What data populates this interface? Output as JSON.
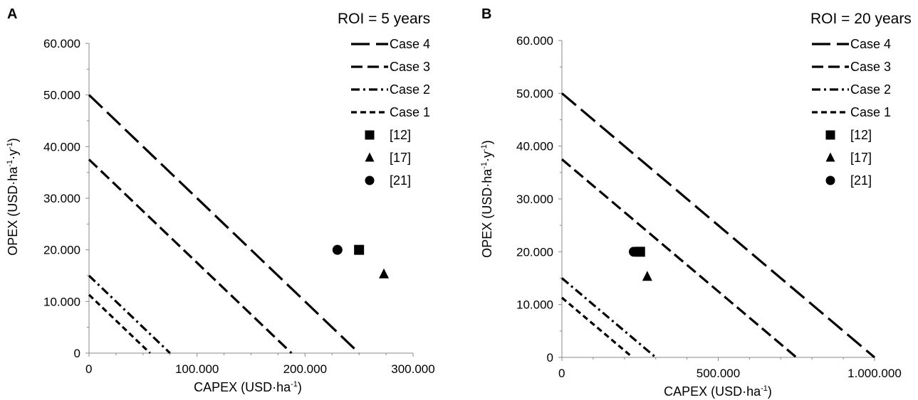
{
  "chart_data": [
    {
      "type": "line",
      "panel_label": "A",
      "title": "ROI = 5 years",
      "xlabel": "CAPEX (USD·ha",
      "xlabel_sup": "-1",
      "xlabel_end": ")",
      "ylabel": "OPEX (USD·ha",
      "ylabel_sup1": "-1",
      "ylabel_mid": "·y",
      "ylabel_sup2": "-1",
      "ylabel_end": ")",
      "xlim": [
        0,
        300000
      ],
      "ylim": [
        0,
        60000
      ],
      "x_tick_labels": [
        "0",
        "100.000",
        "200.000",
        "300.000"
      ],
      "y_tick_labels": [
        "0",
        "10.000",
        "20.000",
        "30.000",
        "40.000",
        "50.000",
        "60.000"
      ],
      "series": [
        {
          "name": "Case 4",
          "style": "long-dash",
          "x": [
            0,
            250000
          ],
          "y": [
            50000,
            0
          ]
        },
        {
          "name": "Case 3",
          "style": "dash",
          "x": [
            0,
            187500
          ],
          "y": [
            37500,
            0
          ]
        },
        {
          "name": "Case 2",
          "style": "dash-dot",
          "x": [
            0,
            75000
          ],
          "y": [
            15000,
            0
          ]
        },
        {
          "name": "Case 1",
          "style": "short-dash",
          "x": [
            0,
            56500
          ],
          "y": [
            11300,
            0
          ]
        }
      ],
      "points": [
        {
          "name": "[12]",
          "marker": "square",
          "x": 250000,
          "y": 20000
        },
        {
          "name": "[17]",
          "marker": "triangle",
          "x": 273000,
          "y": 15300
        },
        {
          "name": "[21]",
          "marker": "circle",
          "x": 230000,
          "y": 20000
        }
      ],
      "legend_position": "top-right"
    },
    {
      "type": "line",
      "panel_label": "B",
      "title": "ROI = 20 years",
      "xlabel": "CAPEX (USD·ha",
      "xlabel_sup": "-1",
      "xlabel_end": ")",
      "ylabel": "OPEX (USD·ha",
      "ylabel_sup1": "-1",
      "ylabel_mid": "·y",
      "ylabel_sup2": "-1",
      "ylabel_end": ")",
      "xlim": [
        0,
        1000000
      ],
      "ylim": [
        0,
        60000
      ],
      "x_tick_labels": [
        "0",
        "500.000",
        "1.000.000"
      ],
      "y_tick_labels": [
        "0",
        "10.000",
        "20.000",
        "30.000",
        "40.000",
        "50.000",
        "60.000"
      ],
      "series": [
        {
          "name": "Case 4",
          "style": "long-dash",
          "x": [
            0,
            1000000
          ],
          "y": [
            50000,
            0
          ]
        },
        {
          "name": "Case 3",
          "style": "dash",
          "x": [
            0,
            750000
          ],
          "y": [
            37500,
            0
          ]
        },
        {
          "name": "Case 2",
          "style": "dash-dot",
          "x": [
            0,
            300000
          ],
          "y": [
            15000,
            0
          ]
        },
        {
          "name": "Case 1",
          "style": "short-dash",
          "x": [
            0,
            226000
          ],
          "y": [
            11300,
            0
          ]
        }
      ],
      "points": [
        {
          "name": "[12]",
          "marker": "square",
          "x": 250000,
          "y": 20000
        },
        {
          "name": "[17]",
          "marker": "triangle",
          "x": 273000,
          "y": 15300
        },
        {
          "name": "[21]",
          "marker": "circle",
          "x": 230000,
          "y": 20000
        }
      ],
      "legend_position": "top-right"
    }
  ]
}
